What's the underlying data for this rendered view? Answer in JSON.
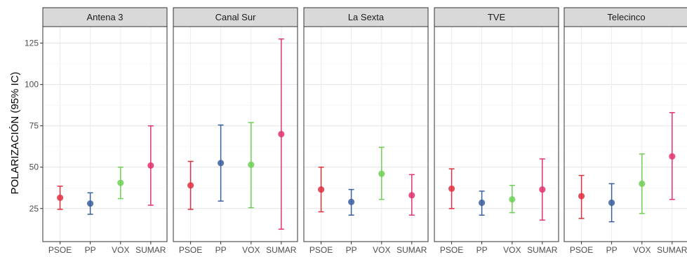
{
  "chart_data": {
    "type": "errorbar",
    "ylabel": "POLARIZACIÓN (95% IC)",
    "xlabel": "",
    "ylim": [
      5,
      135
    ],
    "yticks": [
      25,
      50,
      75,
      100,
      125
    ],
    "y_minor_gridlines": [
      37.5,
      62.5,
      87.5,
      112.5
    ],
    "grid": true,
    "categories": [
      "PSOE",
      "PP",
      "VOX",
      "SUMAR"
    ],
    "colors": {
      "PSOE": "#e0303f",
      "PP": "#3a5f9f",
      "VOX": "#6fcf55",
      "SUMAR": "#e3336f"
    },
    "panels": [
      {
        "title": "Antena 3",
        "points": [
          {
            "party": "PSOE",
            "mean": 31.5,
            "low": 24.5,
            "high": 38.5
          },
          {
            "party": "PP",
            "mean": 28,
            "low": 21.5,
            "high": 34.5
          },
          {
            "party": "VOX",
            "mean": 40.5,
            "low": 31,
            "high": 50
          },
          {
            "party": "SUMAR",
            "mean": 51,
            "low": 27,
            "high": 75
          }
        ]
      },
      {
        "title": "Canal Sur",
        "points": [
          {
            "party": "PSOE",
            "mean": 39,
            "low": 24.5,
            "high": 53.5
          },
          {
            "party": "PP",
            "mean": 52.5,
            "low": 29.5,
            "high": 75.5
          },
          {
            "party": "VOX",
            "mean": 51.5,
            "low": 25.5,
            "high": 77
          },
          {
            "party": "SUMAR",
            "mean": 70,
            "low": 12.5,
            "high": 127.5
          }
        ]
      },
      {
        "title": "La Sexta",
        "points": [
          {
            "party": "PSOE",
            "mean": 36.5,
            "low": 23,
            "high": 50
          },
          {
            "party": "PP",
            "mean": 29,
            "low": 21,
            "high": 36.5
          },
          {
            "party": "VOX",
            "mean": 46,
            "low": 30.5,
            "high": 62
          },
          {
            "party": "SUMAR",
            "mean": 33,
            "low": 21,
            "high": 45.5
          }
        ]
      },
      {
        "title": "TVE",
        "points": [
          {
            "party": "PSOE",
            "mean": 37,
            "low": 25,
            "high": 49
          },
          {
            "party": "PP",
            "mean": 28.5,
            "low": 21,
            "high": 35.5
          },
          {
            "party": "VOX",
            "mean": 30.5,
            "low": 22.5,
            "high": 39
          },
          {
            "party": "SUMAR",
            "mean": 36.5,
            "low": 18,
            "high": 55
          }
        ]
      },
      {
        "title": "Telecinco",
        "points": [
          {
            "party": "PSOE",
            "mean": 32.5,
            "low": 19,
            "high": 45
          },
          {
            "party": "PP",
            "mean": 28.5,
            "low": 17,
            "high": 40
          },
          {
            "party": "VOX",
            "mean": 40,
            "low": 22,
            "high": 58
          },
          {
            "party": "SUMAR",
            "mean": 56.5,
            "low": 30.5,
            "high": 83
          }
        ]
      }
    ]
  }
}
